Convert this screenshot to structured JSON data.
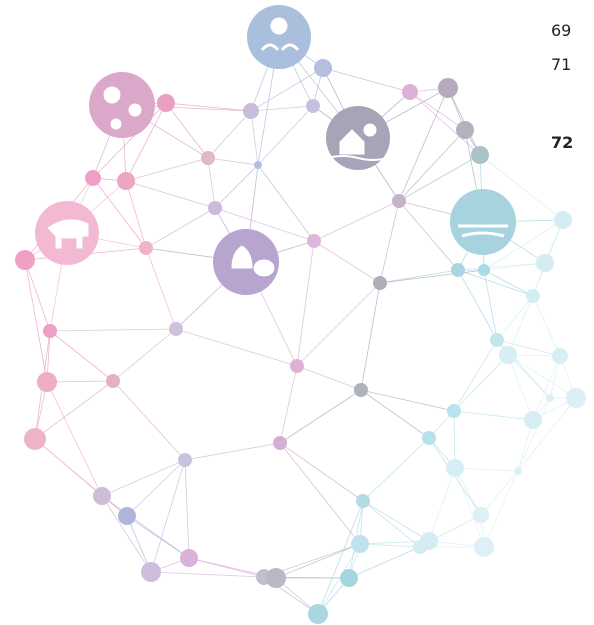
{
  "page_numbers": [
    "69",
    "71",
    "72"
  ]
}
